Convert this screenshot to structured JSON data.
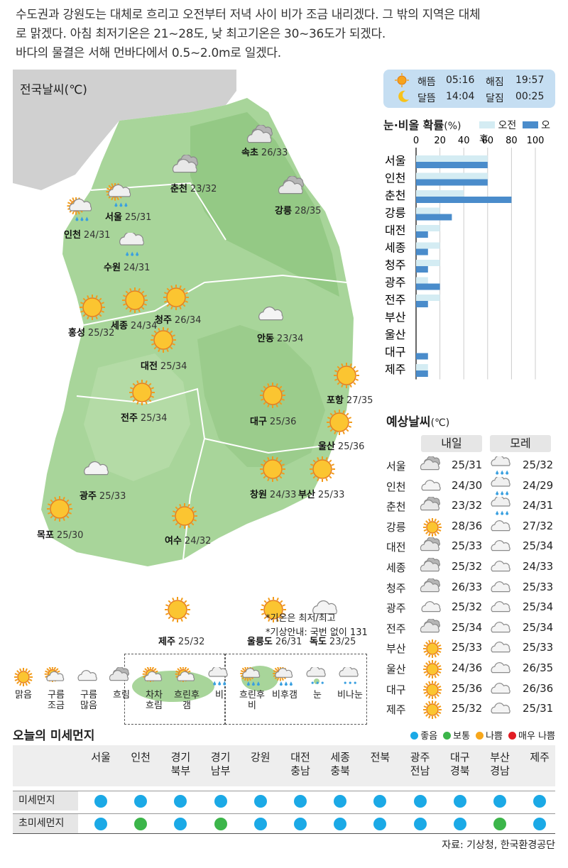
{
  "intro": {
    "line1": "수도권과 강원도는 대체로 흐리고 오전부터 저녁 사이 비가 조금 내리겠다. 그 밖의 지역은 대체",
    "line2": "로 맑겠다. 아침 최저기온은 21~28도, 낮 최고기온은 30~36도가 되겠다.",
    "line3": "바다의 물결은 서해 먼바다에서 0.5~2.0m로 일겠다."
  },
  "map": {
    "title": "전국날씨(℃)",
    "cities": [
      {
        "name": "속초",
        "temp": "26/33",
        "icon": "cloudy-icon"
      },
      {
        "name": "춘천",
        "temp": "23/32",
        "icon": "cloudy-icon"
      },
      {
        "name": "강릉",
        "temp": "28/35",
        "icon": "cloudy-icon"
      },
      {
        "name": "서울",
        "temp": "25/31",
        "icon": "sun-cloud-rain-icon"
      },
      {
        "name": "인천",
        "temp": "24/31",
        "icon": "sun-cloud-rain-icon"
      },
      {
        "name": "수원",
        "temp": "24/31",
        "icon": "rain-icon"
      },
      {
        "name": "홍성",
        "temp": "25/32",
        "icon": "sun-icon"
      },
      {
        "name": "세종",
        "temp": "24/34",
        "icon": "sun-icon"
      },
      {
        "name": "청주",
        "temp": "26/34",
        "icon": "sun-icon"
      },
      {
        "name": "대전",
        "temp": "25/34",
        "icon": "sun-icon"
      },
      {
        "name": "안동",
        "temp": "23/34",
        "icon": "cloud-icon"
      },
      {
        "name": "포항",
        "temp": "27/35",
        "icon": "sun-icon"
      },
      {
        "name": "대구",
        "temp": "25/36",
        "icon": "sun-icon"
      },
      {
        "name": "전주",
        "temp": "25/34",
        "icon": "sun-icon"
      },
      {
        "name": "울산",
        "temp": "25/36",
        "icon": "sun-icon"
      },
      {
        "name": "광주",
        "temp": "25/33",
        "icon": "cloud-icon"
      },
      {
        "name": "창원",
        "temp": "24/33",
        "icon": "sun-icon"
      },
      {
        "name": "부산",
        "temp": "25/33",
        "icon": "sun-icon"
      },
      {
        "name": "목포",
        "temp": "25/30",
        "icon": "sun-icon"
      },
      {
        "name": "여수",
        "temp": "24/32",
        "icon": "sun-icon"
      }
    ],
    "islands": [
      {
        "name": "제주",
        "temp": "25/32",
        "icon": "sun-icon"
      },
      {
        "name": "울릉도",
        "temp": "26/31",
        "icon": "sun-icon"
      },
      {
        "name": "독도",
        "temp": "23/25",
        "icon": "cloud-icon"
      }
    ],
    "note1": "*기온은 최저/최고",
    "note2": "*기상안내: 국번 없이 131"
  },
  "sun_moon": {
    "sunrise_label": "해뜸",
    "sunrise": "05:16",
    "sunset_label": "해짐",
    "sunset": "19:57",
    "moonrise_label": "달뜸",
    "moonrise": "14:04",
    "moonset_label": "달짐",
    "moonset": "00:25"
  },
  "chart_data": {
    "type": "bar",
    "title": "눈·비올 확률",
    "unit": "(%)",
    "categories": [
      "서울",
      "인천",
      "춘천",
      "강릉",
      "대전",
      "세종",
      "청주",
      "광주",
      "전주",
      "부산",
      "울산",
      "대구",
      "제주"
    ],
    "series": [
      {
        "name": "오전",
        "color": "#d4ecf3",
        "values": [
          60,
          60,
          40,
          20,
          20,
          20,
          20,
          10,
          20,
          0,
          0,
          0,
          10
        ]
      },
      {
        "name": "오후",
        "color": "#4a8ccb",
        "values": [
          60,
          60,
          80,
          30,
          10,
          10,
          10,
          20,
          10,
          0,
          0,
          10,
          10
        ]
      }
    ],
    "xticks": [
      "0",
      "20",
      "40",
      "60",
      "80",
      "100"
    ],
    "xlim": [
      0,
      100
    ],
    "legend": "top-right"
  },
  "forecast": {
    "title": "예상날씨",
    "unit": "(℃)",
    "col_tomorrow": "내일",
    "col_dayafter": "모레",
    "rows": [
      {
        "city": "서울",
        "d1_icon": "cloudy-icon",
        "d1": "25/31",
        "d2_icon": "rain-icon",
        "d2": "25/32"
      },
      {
        "city": "인천",
        "d1_icon": "cloud-icon",
        "d1": "24/30",
        "d2_icon": "rain-icon",
        "d2": "24/29"
      },
      {
        "city": "춘천",
        "d1_icon": "cloudy-icon",
        "d1": "23/32",
        "d2_icon": "rain-icon",
        "d2": "24/31"
      },
      {
        "city": "강릉",
        "d1_icon": "sun-icon",
        "d1": "28/36",
        "d2_icon": "cloud-icon",
        "d2": "27/32"
      },
      {
        "city": "대전",
        "d1_icon": "cloudy-icon",
        "d1": "25/33",
        "d2_icon": "cloud-icon",
        "d2": "25/34"
      },
      {
        "city": "세종",
        "d1_icon": "cloudy-icon",
        "d1": "25/32",
        "d2_icon": "cloud-icon",
        "d2": "24/33"
      },
      {
        "city": "청주",
        "d1_icon": "cloudy-icon",
        "d1": "26/33",
        "d2_icon": "cloud-icon",
        "d2": "25/33"
      },
      {
        "city": "광주",
        "d1_icon": "cloud-icon",
        "d1": "25/32",
        "d2_icon": "cloud-icon",
        "d2": "25/34"
      },
      {
        "city": "전주",
        "d1_icon": "cloudy-icon",
        "d1": "25/34",
        "d2_icon": "cloud-icon",
        "d2": "25/34"
      },
      {
        "city": "부산",
        "d1_icon": "sun-icon",
        "d1": "25/33",
        "d2_icon": "cloud-icon",
        "d2": "25/33"
      },
      {
        "city": "울산",
        "d1_icon": "sun-icon",
        "d1": "24/36",
        "d2_icon": "cloud-icon",
        "d2": "26/35"
      },
      {
        "city": "대구",
        "d1_icon": "sun-icon",
        "d1": "25/36",
        "d2_icon": "cloud-icon",
        "d2": "26/36"
      },
      {
        "city": "제주",
        "d1_icon": "sun-icon",
        "d1": "25/32",
        "d2_icon": "cloud-icon",
        "d2": "25/31"
      }
    ]
  },
  "icon_legend": [
    {
      "label1": "맑음",
      "label2": "",
      "icon": "sun-icon"
    },
    {
      "label1": "구름",
      "label2": "조금",
      "icon": "sun-cloud-icon"
    },
    {
      "label1": "구름",
      "label2": "많음",
      "icon": "cloud-icon"
    },
    {
      "label1": "흐림",
      "label2": "",
      "icon": "cloudy-icon"
    },
    {
      "label1": "차차",
      "label2": "흐림",
      "icon": "sun-cloud-icon"
    },
    {
      "label1": "흐린후",
      "label2": "갬",
      "icon": "sun-cloud-icon"
    },
    {
      "label1": "비",
      "label2": "",
      "icon": "rain-icon"
    },
    {
      "label1": "흐린후",
      "label2": "비",
      "icon": "sun-cloud-rain-icon"
    },
    {
      "label1": "비후갬",
      "label2": "",
      "icon": "sun-cloud-rain-icon"
    },
    {
      "label1": "눈",
      "label2": "",
      "icon": "snow-icon"
    },
    {
      "label1": "비나눈",
      "label2": "",
      "icon": "snow-icon"
    }
  ],
  "dust": {
    "title": "오늘의 미세먼지",
    "legend": [
      {
        "label": "좋음",
        "color": "#1ba9e6"
      },
      {
        "label": "보통",
        "color": "#3cb54a"
      },
      {
        "label": "나쁨",
        "color": "#f7a71c"
      },
      {
        "label": "매우 나쁨",
        "color": "#e21c23"
      }
    ],
    "regions": [
      {
        "l1": "서울",
        "l2": ""
      },
      {
        "l1": "인천",
        "l2": ""
      },
      {
        "l1": "경기",
        "l2": "북부"
      },
      {
        "l1": "경기",
        "l2": "남부"
      },
      {
        "l1": "강원",
        "l2": ""
      },
      {
        "l1": "대전",
        "l2": "충남"
      },
      {
        "l1": "세종",
        "l2": "충북"
      },
      {
        "l1": "전북",
        "l2": ""
      },
      {
        "l1": "광주",
        "l2": "전남"
      },
      {
        "l1": "대구",
        "l2": "경북"
      },
      {
        "l1": "부산",
        "l2": "경남"
      },
      {
        "l1": "제주",
        "l2": ""
      }
    ],
    "rows": [
      {
        "label": "미세먼지",
        "levels": [
          "좋음",
          "좋음",
          "좋음",
          "좋음",
          "좋음",
          "좋음",
          "좋음",
          "좋음",
          "좋음",
          "좋음",
          "좋음",
          "좋음"
        ]
      },
      {
        "label": "초미세먼지",
        "levels": [
          "좋음",
          "보통",
          "좋음",
          "보통",
          "좋음",
          "좋음",
          "좋음",
          "좋음",
          "좋음",
          "좋음",
          "보통",
          "좋음"
        ]
      }
    ]
  },
  "source": "자료: 기상청, 한국환경공단"
}
